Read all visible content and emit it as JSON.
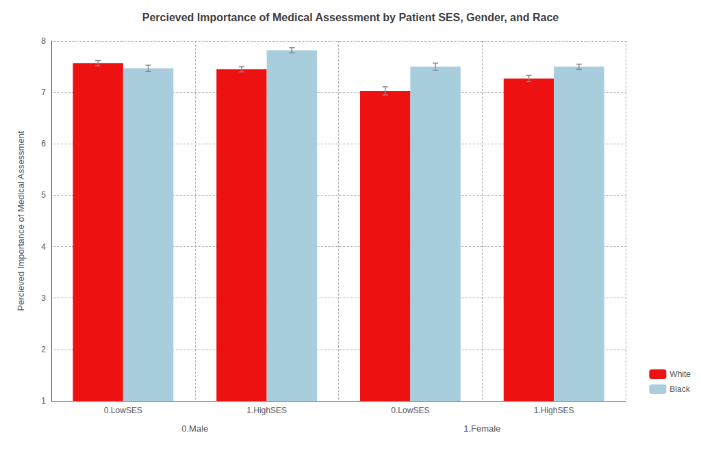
{
  "chart_data": {
    "type": "bar",
    "title": "Percieved Importance of Medical Assessment by Patient SES, Gender, and Race",
    "ylabel": "Percieved Importance of Medical Assessment",
    "categories": [
      "0.LowSES",
      "1.HighSES",
      "0.LowSES",
      "1.HighSES"
    ],
    "groups": [
      "0.Male",
      "1.Female"
    ],
    "series": [
      {
        "name": "White",
        "color": "#EE1111",
        "values": [
          7.57,
          7.45,
          7.03,
          7.27
        ],
        "errors": [
          0.05,
          0.05,
          0.08,
          0.06
        ]
      },
      {
        "name": "Black",
        "color": "#A8CEDE",
        "values": [
          7.47,
          7.82,
          7.5,
          7.5
        ],
        "errors": [
          0.06,
          0.05,
          0.07,
          0.05
        ]
      }
    ],
    "error_color": "#888888",
    "ylim": [
      1,
      8
    ],
    "yticks": [
      1,
      2,
      3,
      4,
      5,
      6,
      7,
      8
    ],
    "grid": true,
    "legend": "lower right"
  }
}
